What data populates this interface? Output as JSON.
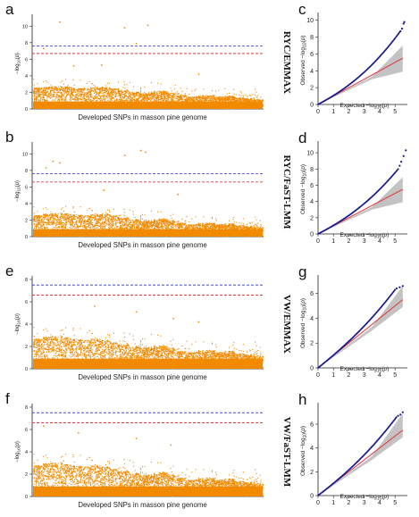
{
  "chart_data": [
    {
      "type": "scatter",
      "panel_label": "a",
      "side_label": "RYC/EMMAX",
      "xlabel": "Developed SNPs in masson pine genome",
      "ylabel": "-log10(p)",
      "ylim": [
        0,
        11
      ],
      "yticks": [
        0,
        2,
        4,
        6,
        8,
        10
      ],
      "threshold_blue": 7.6,
      "threshold_red": 6.7,
      "baseline_profile": [
        2.6,
        2.7,
        2.8,
        2.7,
        2.6,
        2.5,
        2.6,
        2.7,
        2.5,
        2.3,
        2.1,
        1.9,
        2.1,
        2.2,
        2.0,
        1.7,
        1.5,
        1.6,
        1.7,
        1.5,
        1.6,
        1.4,
        1.3,
        1.2
      ],
      "outliers": [
        {
          "x": 0.12,
          "y": 10.5
        },
        {
          "x": 0.4,
          "y": 9.8
        },
        {
          "x": 0.5,
          "y": 10.1
        },
        {
          "x": 0.05,
          "y": 7.3
        },
        {
          "x": 0.45,
          "y": 7.9
        },
        {
          "x": 0.3,
          "y": 5.3
        },
        {
          "x": 0.18,
          "y": 5.2
        },
        {
          "x": 0.72,
          "y": 4.2
        }
      ]
    },
    {
      "type": "scatter",
      "panel_label": "b",
      "side_label": "RYC/FaST-LMM",
      "xlabel": "Developed SNPs in masson pine genome",
      "ylabel": "-log10(p)",
      "ylim": [
        0,
        11
      ],
      "yticks": [
        0,
        2,
        4,
        6,
        8,
        10
      ],
      "threshold_blue": 7.6,
      "threshold_red": 6.6,
      "baseline_profile": [
        2.6,
        2.8,
        2.9,
        2.8,
        2.7,
        2.6,
        2.7,
        2.8,
        2.6,
        2.3,
        2.1,
        1.9,
        2.0,
        2.2,
        2.0,
        1.7,
        1.5,
        1.6,
        1.7,
        1.5,
        1.6,
        1.4,
        1.3,
        1.2
      ],
      "outliers": [
        {
          "x": 0.06,
          "y": 8.3
        },
        {
          "x": 0.09,
          "y": 9.1
        },
        {
          "x": 0.12,
          "y": 8.9
        },
        {
          "x": 0.4,
          "y": 9.8
        },
        {
          "x": 0.47,
          "y": 10.4
        },
        {
          "x": 0.49,
          "y": 10.2
        },
        {
          "x": 0.31,
          "y": 5.6
        },
        {
          "x": 0.63,
          "y": 5.1
        }
      ]
    },
    {
      "type": "scatter",
      "panel_label": "e",
      "side_label": "VW/EMMAX",
      "xlabel": "Developed SNPs in masson pine genome",
      "ylabel": "-log10(p)",
      "ylim": [
        0,
        8
      ],
      "yticks": [
        0,
        2,
        4,
        6,
        8
      ],
      "threshold_blue": 7.5,
      "threshold_red": 6.6,
      "baseline_profile": [
        2.7,
        2.9,
        3.0,
        2.8,
        2.7,
        2.6,
        2.7,
        2.6,
        2.4,
        2.2,
        2.0,
        1.9,
        2.0,
        2.1,
        1.9,
        1.6,
        1.5,
        1.6,
        1.7,
        1.5,
        1.6,
        1.4,
        1.3,
        1.2
      ],
      "outliers": [
        {
          "x": 0.27,
          "y": 5.6
        },
        {
          "x": 0.45,
          "y": 5.1
        },
        {
          "x": 0.61,
          "y": 4.5
        },
        {
          "x": 0.72,
          "y": 4.2
        }
      ]
    },
    {
      "type": "scatter",
      "panel_label": "f",
      "side_label": "VW/FaST-LMM",
      "xlabel": "Developed SNPs in masson pine genome",
      "ylabel": "-log10(p)",
      "ylim": [
        0,
        8
      ],
      "yticks": [
        0,
        2,
        4,
        6,
        8
      ],
      "threshold_blue": 7.5,
      "threshold_red": 6.6,
      "baseline_profile": [
        2.8,
        3.0,
        3.1,
        2.9,
        2.8,
        2.7,
        2.8,
        2.7,
        2.5,
        2.3,
        2.1,
        1.9,
        2.0,
        2.2,
        2.0,
        1.7,
        1.5,
        1.6,
        1.7,
        1.5,
        1.6,
        1.4,
        1.3,
        1.2
      ],
      "outliers": [
        {
          "x": 0.05,
          "y": 6.3
        },
        {
          "x": 0.2,
          "y": 5.7
        },
        {
          "x": 0.45,
          "y": 5.2
        },
        {
          "x": 0.6,
          "y": 4.6
        }
      ]
    },
    {
      "type": "scatter",
      "panel_label": "c",
      "xlabel": "Expected -log10(p)",
      "ylabel": "Observed -log10(p)",
      "xticks": [
        0,
        1,
        2,
        3,
        4,
        5
      ],
      "yticks": [
        0,
        2,
        4,
        6,
        8,
        10
      ],
      "xlim": [
        0,
        5.8
      ],
      "ylim": [
        0,
        10.5
      ],
      "qq_end": [
        5.3,
        8.6
      ],
      "qq_tail": [
        [
          5.35,
          8.7
        ],
        [
          5.45,
          9.0
        ],
        [
          5.55,
          9.6
        ],
        [
          5.6,
          9.8
        ]
      ],
      "expected_end": 5.5,
      "band_end": [
        3.9,
        7.0
      ]
    },
    {
      "type": "scatter",
      "panel_label": "d",
      "xlabel": "Expected -log10(p)",
      "ylabel": "Observed -log10(p)",
      "xticks": [
        0,
        1,
        2,
        3,
        4,
        5
      ],
      "yticks": [
        0,
        2,
        4,
        6,
        8,
        10
      ],
      "xlim": [
        0,
        5.8
      ],
      "ylim": [
        0,
        11
      ],
      "qq_end": [
        5.2,
        8.0
      ],
      "qq_tail": [
        [
          5.3,
          8.4
        ],
        [
          5.4,
          8.9
        ],
        [
          5.55,
          9.6
        ],
        [
          5.7,
          10.3
        ]
      ],
      "expected_end": 5.5,
      "band_end": [
        3.9,
        7.0
      ]
    },
    {
      "type": "scatter",
      "panel_label": "g",
      "xlabel": "Expected -log10(p)",
      "ylabel": "Observed -log10(p)",
      "xticks": [
        0,
        1,
        2,
        3,
        4,
        5
      ],
      "yticks": [
        0,
        2,
        4,
        6
      ],
      "xlim": [
        0,
        5.8
      ],
      "ylim": [
        0,
        7.2
      ],
      "qq_end": [
        5.0,
        6.3
      ],
      "qq_tail": [
        [
          5.1,
          6.4
        ],
        [
          5.3,
          6.5
        ],
        [
          5.5,
          6.6
        ]
      ],
      "expected_end": 5.5,
      "band_end": [
        4.9,
        6.6
      ]
    },
    {
      "type": "scatter",
      "panel_label": "h",
      "xlabel": "Expected -log10(p)",
      "ylabel": "Observed -log10(p)",
      "xticks": [
        0,
        1,
        2,
        3,
        4,
        5
      ],
      "yticks": [
        0,
        2,
        4,
        6
      ],
      "xlim": [
        0,
        5.8
      ],
      "ylim": [
        0,
        7.5
      ],
      "qq_end": [
        5.1,
        6.6
      ],
      "qq_tail": [
        [
          5.2,
          6.7
        ],
        [
          5.35,
          6.8
        ],
        [
          5.5,
          7.0
        ]
      ],
      "expected_end": 5.5,
      "band_end": [
        4.9,
        6.9
      ]
    }
  ],
  "style": {
    "manhattan_color": "#f28a00",
    "blue_line": "#4a4ae6",
    "red_line": "#e23a3a",
    "qq_point": "#1b1b8c",
    "qq_line": "#e0404a",
    "qq_band": "#b8b8b8"
  }
}
